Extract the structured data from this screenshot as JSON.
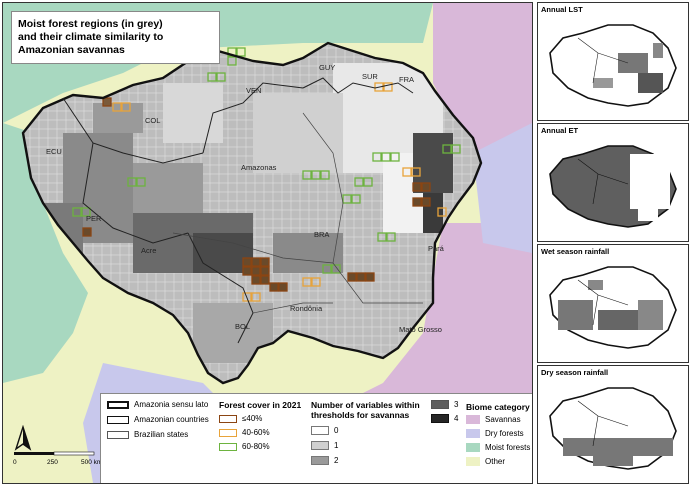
{
  "title": {
    "line1": "Moist forest regions (in grey)",
    "line2": "and their climate similarity to",
    "line3": "Amazonian savannas"
  },
  "map_labels": {
    "ven": "VEN",
    "guy": "GUY",
    "sur": "SUR",
    "fra": "FRA",
    "col": "COL",
    "ecu": "ECU",
    "per": "PER",
    "bra": "BRA",
    "bol": "BOL",
    "amazonas": "Amazonas",
    "acre": "Acre",
    "para": "Pará",
    "rondonia": "Rondônia",
    "mato_grosso": "Mato Grosso"
  },
  "legend": {
    "boundaries": [
      "Amazonia sensu lato",
      "Amazonian countries",
      "Brazilian states"
    ],
    "forest_cover_title": "Forest cover in 2021",
    "forest_cover": [
      {
        "label": "≤40%",
        "color": "#8B4513"
      },
      {
        "label": "40-60%",
        "color": "#E8A33A"
      },
      {
        "label": "60-80%",
        "color": "#6DB33F"
      }
    ],
    "variables_title_1": "Number of variables within",
    "variables_title_2": "thresholds for savannas",
    "variables": [
      {
        "label": "0",
        "color": "#ffffff"
      },
      {
        "label": "1",
        "color": "#cfcfcf"
      },
      {
        "label": "2",
        "color": "#9a9a9a"
      },
      {
        "label": "3",
        "color": "#5f5f5f"
      },
      {
        "label": "4",
        "color": "#262626"
      }
    ],
    "biome_title": "Biome category",
    "biomes": [
      {
        "label": "Savannas",
        "color": "#d9b8d9"
      },
      {
        "label": "Dry forests",
        "color": "#c8c8ec"
      },
      {
        "label": "Moist forests",
        "color": "#a8d8c0"
      },
      {
        "label": "Other",
        "color": "#eef2c4"
      }
    ]
  },
  "scale": {
    "start": "0",
    "mid": "250",
    "end": "500 km"
  },
  "north_symbol": "A",
  "panels": [
    {
      "title": "Annual LST"
    },
    {
      "title": "Annual ET"
    },
    {
      "title": "Wet season rainfall"
    },
    {
      "title": "Dry season rainfall"
    }
  ]
}
